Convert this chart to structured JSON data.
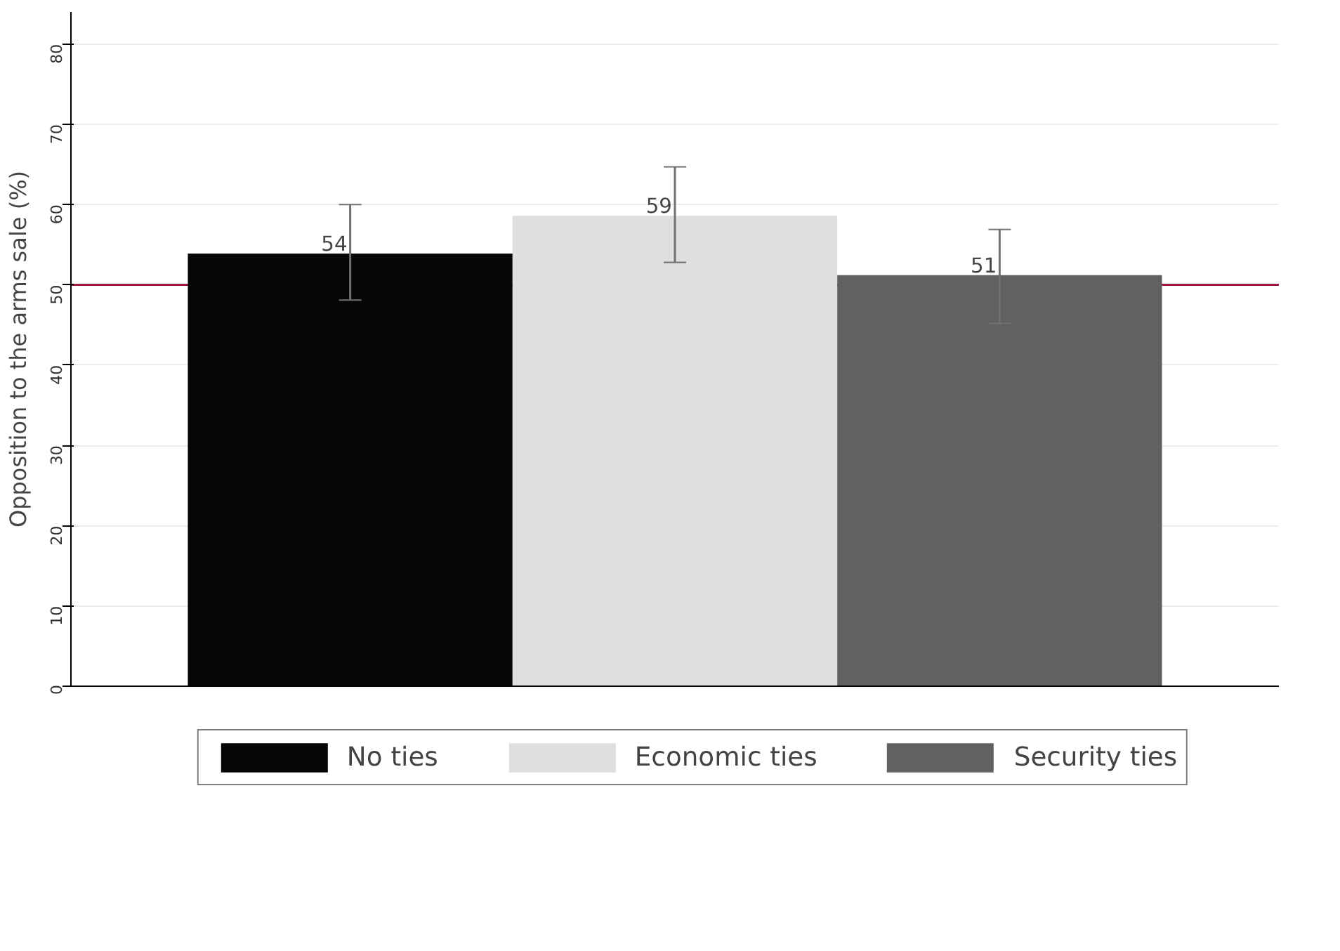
{
  "chart_data": {
    "type": "bar",
    "ylabel": "Opposition to the arms sale (%)",
    "categories": [
      null
    ],
    "series": [
      {
        "name": "No ties",
        "color": "#060606",
        "values": [
          53.9
        ],
        "errors": [
          [
            48.1,
            60.0
          ]
        ],
        "value_labels": [
          "54"
        ]
      },
      {
        "name": "Economic ties",
        "color": "#dfdfdf",
        "values": [
          58.6
        ],
        "errors": [
          [
            52.8,
            64.7
          ]
        ],
        "value_labels": [
          "59"
        ]
      },
      {
        "name": "Security ties",
        "color": "#606160",
        "values": [
          51.2
        ],
        "errors": [
          [
            45.2,
            56.9
          ]
        ],
        "value_labels": [
          "51"
        ]
      }
    ],
    "ylim": [
      0,
      84
    ],
    "yticks": [
      0,
      10,
      20,
      30,
      40,
      50,
      60,
      70,
      80
    ],
    "grid": "y",
    "legend": "bottom",
    "ref_lines": [
      {
        "axis": "y",
        "value": 50,
        "color": "#9e1a3c"
      }
    ]
  }
}
